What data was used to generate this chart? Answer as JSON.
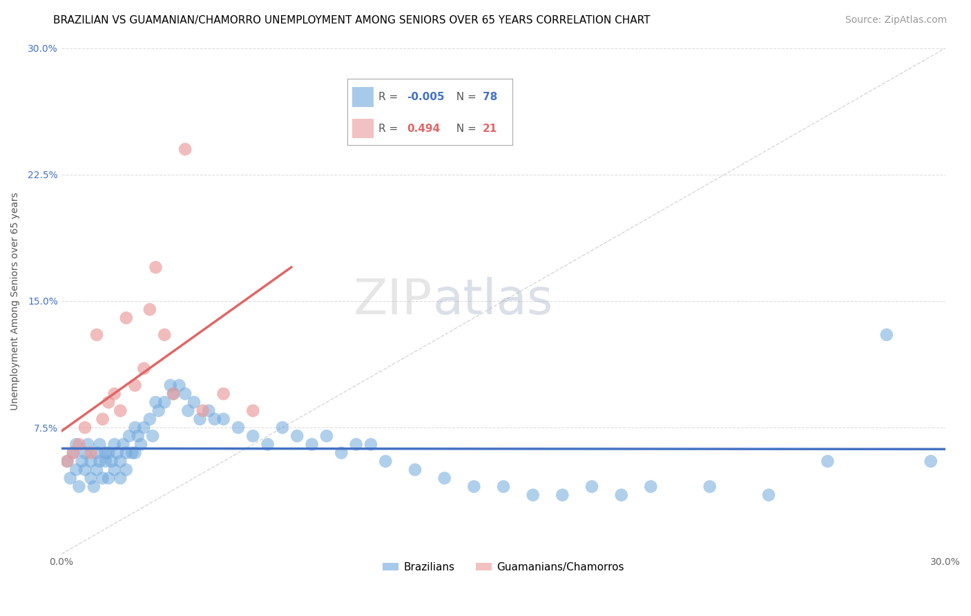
{
  "title": "BRAZILIAN VS GUAMANIAN/CHAMORRO UNEMPLOYMENT AMONG SENIORS OVER 65 YEARS CORRELATION CHART",
  "source": "Source: ZipAtlas.com",
  "ylabel": "Unemployment Among Seniors over 65 years",
  "xlim": [
    0.0,
    0.3
  ],
  "ylim": [
    0.0,
    0.3
  ],
  "xticks": [
    0.0,
    0.075,
    0.15,
    0.225,
    0.3
  ],
  "xticklabels": [
    "0.0%",
    "",
    "",
    "",
    "30.0%"
  ],
  "yticks": [
    0.0,
    0.075,
    0.15,
    0.225,
    0.3
  ],
  "yticklabels": [
    "",
    "7.5%",
    "15.0%",
    "22.5%",
    "30.0%"
  ],
  "watermark_zip": "ZIP",
  "watermark_atlas": "atlas",
  "blue_R": -0.005,
  "blue_N": 78,
  "pink_R": 0.494,
  "pink_N": 21,
  "blue_color": "#6fa8dc",
  "pink_color": "#ea9999",
  "blue_line_color": "#4472c4",
  "pink_line_color": "#e06666",
  "blue_scatter_x": [
    0.002,
    0.003,
    0.004,
    0.005,
    0.005,
    0.006,
    0.007,
    0.008,
    0.008,
    0.009,
    0.01,
    0.01,
    0.011,
    0.012,
    0.012,
    0.013,
    0.013,
    0.014,
    0.015,
    0.015,
    0.016,
    0.016,
    0.017,
    0.018,
    0.018,
    0.019,
    0.02,
    0.02,
    0.021,
    0.022,
    0.022,
    0.023,
    0.024,
    0.025,
    0.025,
    0.026,
    0.027,
    0.028,
    0.03,
    0.031,
    0.032,
    0.033,
    0.035,
    0.037,
    0.038,
    0.04,
    0.042,
    0.043,
    0.045,
    0.047,
    0.05,
    0.052,
    0.055,
    0.06,
    0.065,
    0.07,
    0.075,
    0.08,
    0.085,
    0.09,
    0.095,
    0.1,
    0.105,
    0.11,
    0.12,
    0.13,
    0.14,
    0.15,
    0.16,
    0.17,
    0.18,
    0.19,
    0.2,
    0.22,
    0.24,
    0.26,
    0.28,
    0.295
  ],
  "blue_scatter_y": [
    0.055,
    0.045,
    0.06,
    0.05,
    0.065,
    0.04,
    0.055,
    0.06,
    0.05,
    0.065,
    0.045,
    0.055,
    0.04,
    0.06,
    0.05,
    0.065,
    0.055,
    0.045,
    0.06,
    0.055,
    0.045,
    0.06,
    0.055,
    0.05,
    0.065,
    0.06,
    0.045,
    0.055,
    0.065,
    0.06,
    0.05,
    0.07,
    0.06,
    0.075,
    0.06,
    0.07,
    0.065,
    0.075,
    0.08,
    0.07,
    0.09,
    0.085,
    0.09,
    0.1,
    0.095,
    0.1,
    0.095,
    0.085,
    0.09,
    0.08,
    0.085,
    0.08,
    0.08,
    0.075,
    0.07,
    0.065,
    0.075,
    0.07,
    0.065,
    0.07,
    0.06,
    0.065,
    0.065,
    0.055,
    0.05,
    0.045,
    0.04,
    0.04,
    0.035,
    0.035,
    0.04,
    0.035,
    0.04,
    0.04,
    0.035,
    0.055,
    0.13,
    0.055
  ],
  "pink_scatter_x": [
    0.002,
    0.004,
    0.006,
    0.008,
    0.01,
    0.012,
    0.014,
    0.016,
    0.018,
    0.02,
    0.022,
    0.025,
    0.028,
    0.03,
    0.032,
    0.035,
    0.038,
    0.042,
    0.048,
    0.055,
    0.065
  ],
  "pink_scatter_y": [
    0.055,
    0.06,
    0.065,
    0.075,
    0.06,
    0.13,
    0.08,
    0.09,
    0.095,
    0.085,
    0.14,
    0.1,
    0.11,
    0.145,
    0.17,
    0.13,
    0.095,
    0.24,
    0.085,
    0.095,
    0.085
  ],
  "title_fontsize": 11,
  "axis_label_fontsize": 10,
  "tick_fontsize": 10,
  "legend_fontsize": 11,
  "source_fontsize": 10
}
